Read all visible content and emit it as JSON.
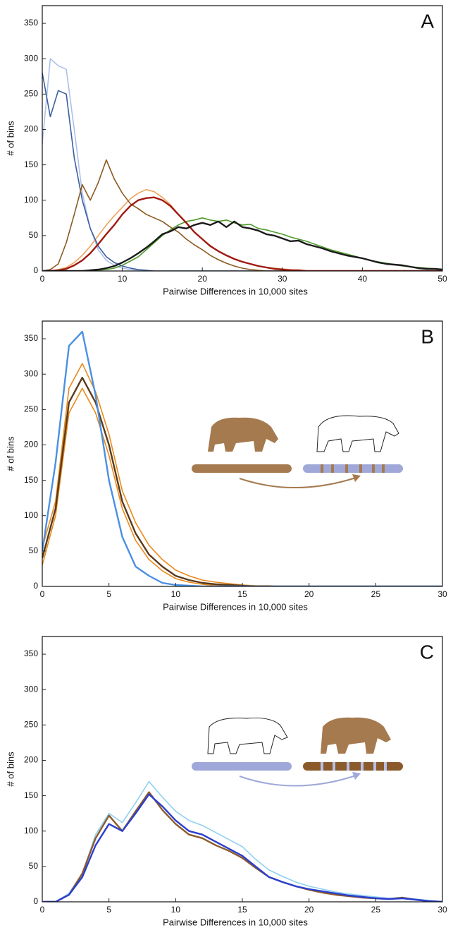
{
  "chart_data": [
    {
      "type": "line",
      "label": "A",
      "xlabel": "Pairwise Differences in 10,000 sites",
      "ylabel": "# of bins",
      "xlim": [
        0,
        50
      ],
      "ylim": [
        0,
        375
      ],
      "xticks": [
        0,
        10,
        20,
        30,
        40,
        50
      ],
      "yticks": [
        0,
        50,
        100,
        150,
        200,
        250,
        300,
        350
      ],
      "x": [
        0,
        1,
        2,
        3,
        4,
        5,
        6,
        7,
        8,
        9,
        10,
        11,
        12,
        13,
        14,
        15,
        16,
        17,
        18,
        19,
        20,
        21,
        22,
        23,
        24,
        25,
        26,
        27,
        28,
        29,
        30,
        31,
        32,
        33,
        34,
        35,
        36,
        37,
        38,
        39,
        40,
        41,
        42,
        43,
        44,
        45,
        46,
        47,
        48,
        49,
        50
      ],
      "series": [
        {
          "color": "#aebfe8",
          "values": [
            180,
            300,
            290,
            285,
            200,
            110,
            60,
            30,
            15,
            8,
            4,
            2,
            1,
            0,
            0,
            0,
            0,
            0,
            0,
            0,
            0,
            0,
            0,
            0,
            0,
            0,
            0,
            0,
            0,
            0,
            0,
            0,
            0,
            0,
            0,
            0,
            0,
            0,
            0,
            0,
            0,
            0,
            0,
            0,
            0,
            0,
            0,
            0,
            0,
            0,
            0
          ]
        },
        {
          "color": "#f0a35a",
          "values": [
            0,
            0,
            2,
            5,
            12,
            22,
            35,
            50,
            65,
            78,
            90,
            102,
            110,
            115,
            112,
            104,
            94,
            80,
            68,
            55,
            45,
            36,
            28,
            22,
            17,
            13,
            10,
            7,
            5,
            4,
            3,
            2,
            1,
            0,
            0,
            0,
            0,
            0,
            0,
            0,
            0,
            0,
            0,
            0,
            0,
            0,
            0,
            0,
            0,
            0,
            0
          ]
        },
        {
          "color": "#4e9a2a",
          "values": [
            0,
            0,
            0,
            0,
            0,
            0,
            0,
            1,
            2,
            4,
            8,
            14,
            20,
            30,
            40,
            50,
            58,
            65,
            70,
            72,
            75,
            72,
            70,
            72,
            68,
            65,
            66,
            60,
            58,
            55,
            52,
            48,
            45,
            42,
            38,
            34,
            30,
            27,
            24,
            21,
            18,
            15,
            13,
            11,
            9,
            7,
            6,
            5,
            4,
            3,
            2
          ]
        },
        {
          "color": "#3a5fa0",
          "values": [
            280,
            218,
            255,
            250,
            160,
            100,
            60,
            35,
            20,
            12,
            7,
            4,
            2,
            1,
            0,
            0,
            0,
            0,
            0,
            0,
            0,
            0,
            0,
            0,
            0,
            0,
            0,
            0,
            0,
            0,
            0,
            0,
            0,
            0,
            0,
            0,
            0,
            0,
            0,
            0,
            0,
            0,
            0,
            0,
            0,
            0,
            0,
            0,
            0,
            0,
            0
          ]
        },
        {
          "color": "#8b5a1e",
          "values": [
            0,
            2,
            10,
            40,
            80,
            122,
            100,
            125,
            157,
            130,
            110,
            95,
            88,
            80,
            75,
            70,
            62,
            55,
            45,
            37,
            30,
            22,
            16,
            11,
            7,
            4,
            2,
            1,
            0,
            0,
            0,
            0,
            0,
            0,
            0,
            0,
            0,
            0,
            0,
            0,
            0,
            0,
            0,
            0,
            0,
            0,
            0,
            0,
            0,
            0,
            0
          ]
        },
        {
          "color": "#a01810",
          "values": [
            0,
            0,
            1,
            3,
            8,
            15,
            25,
            38,
            52,
            65,
            80,
            92,
            100,
            103,
            104,
            100,
            92,
            80,
            68,
            55,
            45,
            35,
            28,
            22,
            17,
            13,
            10,
            7,
            5,
            3,
            2,
            1,
            1,
            0,
            0,
            0,
            0,
            0,
            0,
            0,
            0,
            0,
            0,
            0,
            0,
            0,
            0,
            0,
            0,
            0,
            0
          ]
        },
        {
          "color": "#1a1a1a",
          "values": [
            0,
            0,
            0,
            0,
            0,
            0,
            1,
            2,
            4,
            7,
            12,
            18,
            25,
            33,
            42,
            52,
            56,
            62,
            60,
            65,
            68,
            65,
            70,
            62,
            70,
            62,
            60,
            57,
            52,
            50,
            46,
            42,
            43,
            38,
            35,
            32,
            28,
            25,
            22,
            20,
            18,
            15,
            12,
            10,
            9,
            8,
            6,
            4,
            3,
            3,
            2
          ]
        }
      ]
    },
    {
      "type": "line",
      "label": "B",
      "xlabel": "Pairwise Differences in 10,000 sites",
      "ylabel": "# of bins",
      "xlim": [
        0,
        30
      ],
      "ylim": [
        0,
        375
      ],
      "xticks": [
        0,
        5,
        10,
        15,
        20,
        25,
        30
      ],
      "yticks": [
        0,
        50,
        100,
        150,
        200,
        250,
        300,
        350
      ],
      "x": [
        0,
        1,
        2,
        3,
        4,
        5,
        6,
        7,
        8,
        9,
        10,
        11,
        12,
        13,
        14,
        15,
        16,
        17,
        18,
        19,
        20,
        21,
        22,
        23,
        24,
        25,
        26,
        27,
        28,
        29,
        30
      ],
      "series": [
        {
          "color": "#e88a1a",
          "values": [
            55,
            120,
            280,
            315,
            275,
            215,
            135,
            90,
            58,
            38,
            23,
            15,
            9,
            6,
            4,
            2,
            1,
            1,
            0,
            0,
            0,
            0,
            0,
            0,
            0,
            0,
            0,
            0,
            0,
            0,
            0
          ]
        },
        {
          "color": "#e88a1a",
          "values": [
            30,
            100,
            245,
            280,
            245,
            185,
            110,
            65,
            38,
            22,
            11,
            6,
            3,
            1,
            0,
            0,
            0,
            0,
            0,
            0,
            0,
            0,
            0,
            0,
            0,
            0,
            0,
            0,
            0,
            0,
            0
          ]
        },
        {
          "color": "#5a3a1a",
          "values": [
            40,
            110,
            260,
            295,
            260,
            200,
            120,
            75,
            45,
            28,
            15,
            9,
            5,
            3,
            2,
            1,
            0,
            0,
            0,
            0,
            0,
            0,
            0,
            0,
            0,
            0,
            0,
            0,
            0,
            0,
            0
          ]
        },
        {
          "color": "#4a90e2",
          "values": [
            50,
            175,
            340,
            360,
            270,
            150,
            70,
            28,
            15,
            5,
            2,
            1,
            0,
            0,
            0,
            0,
            0,
            0,
            0,
            0,
            0,
            0,
            0,
            0,
            0,
            0,
            0,
            0,
            0,
            0,
            0
          ]
        }
      ]
    },
    {
      "type": "line",
      "label": "C",
      "xlabel": "Pairwise Differences in 10,000 sites",
      "ylabel": "# of bins",
      "xlim": [
        0,
        30
      ],
      "ylim": [
        0,
        375
      ],
      "xticks": [
        0,
        5,
        10,
        15,
        20,
        25,
        30
      ],
      "yticks": [
        0,
        50,
        100,
        150,
        200,
        250,
        300,
        350
      ],
      "x": [
        0,
        1,
        2,
        3,
        4,
        5,
        6,
        7,
        8,
        9,
        10,
        11,
        12,
        13,
        14,
        15,
        16,
        17,
        18,
        19,
        20,
        21,
        22,
        23,
        24,
        25,
        26,
        27,
        28,
        29,
        30
      ],
      "series": [
        {
          "color": "#8fd0f0",
          "values": [
            0,
            0,
            12,
            40,
            95,
            125,
            112,
            140,
            170,
            148,
            128,
            115,
            108,
            98,
            88,
            78,
            60,
            45,
            36,
            28,
            22,
            18,
            14,
            11,
            9,
            7,
            5,
            6,
            4,
            2,
            0
          ]
        },
        {
          "color": "#8b5a2b",
          "values": [
            0,
            0,
            10,
            40,
            90,
            122,
            100,
            128,
            155,
            130,
            110,
            95,
            90,
            80,
            72,
            62,
            48,
            35,
            28,
            22,
            17,
            13,
            10,
            8,
            6,
            5,
            4,
            6,
            3,
            1,
            0
          ]
        },
        {
          "color": "#2a3fd0",
          "values": [
            0,
            0,
            10,
            35,
            80,
            110,
            100,
            125,
            152,
            135,
            115,
            100,
            95,
            85,
            75,
            65,
            50,
            35,
            28,
            22,
            18,
            15,
            12,
            9,
            7,
            5,
            4,
            5,
            3,
            1,
            0
          ]
        }
      ]
    }
  ]
}
